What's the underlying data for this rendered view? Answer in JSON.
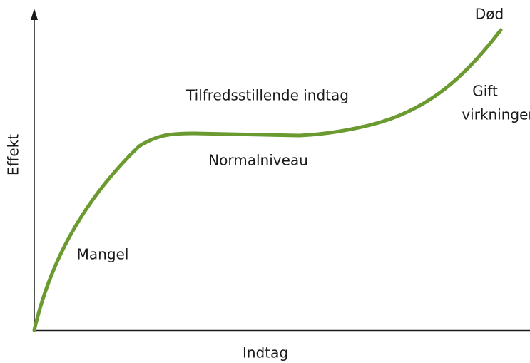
{
  "axes": {
    "y_label": "Effekt",
    "x_label": "Indtag"
  },
  "labels": {
    "death": "Død",
    "satisfactory": "Tilfredsstillende indtag",
    "toxic": [
      "Gift",
      "virkninger"
    ],
    "normal": "Normalniveau",
    "deficiency": "Mangel"
  }
}
